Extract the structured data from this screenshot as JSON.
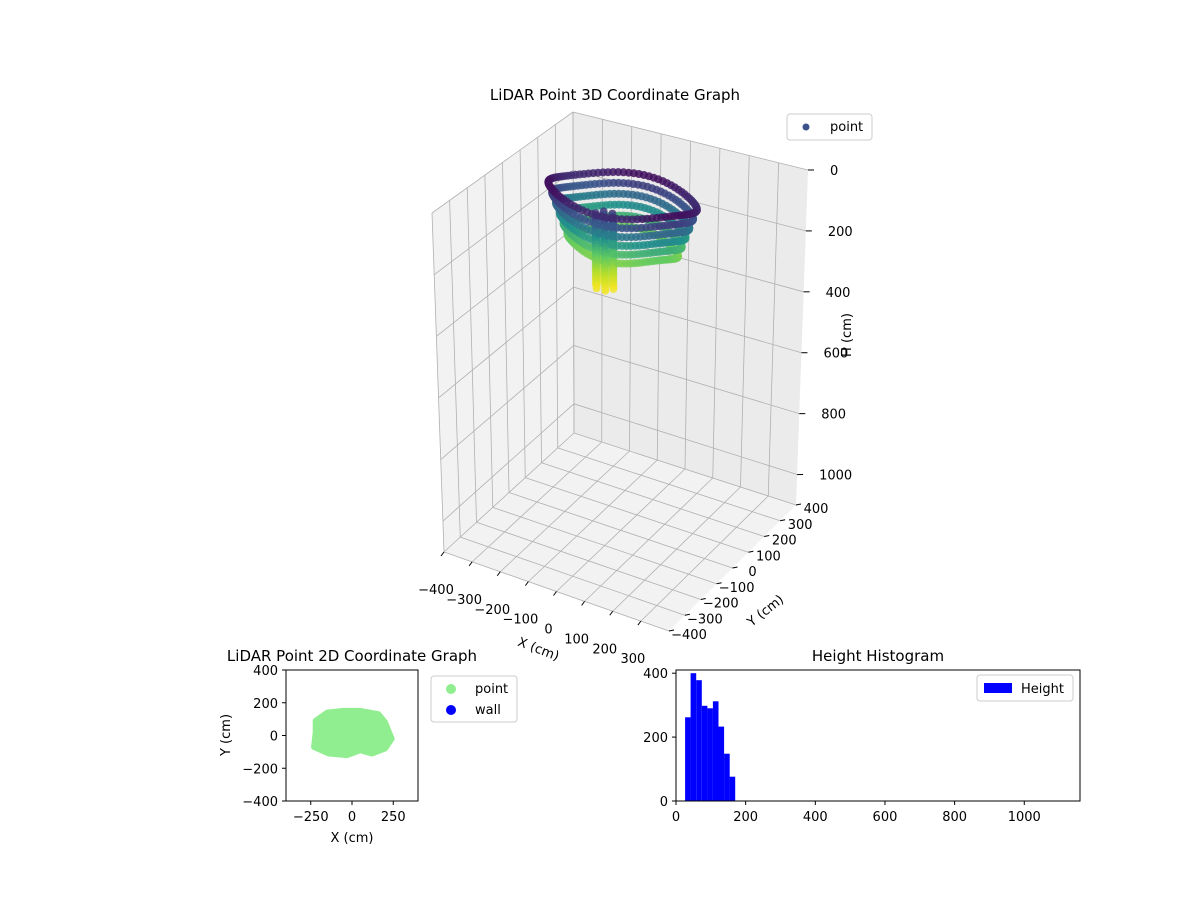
{
  "chart_data": [
    {
      "id": "lidar-3d",
      "type": "scatter",
      "title": "LiDAR Point 3D Coordinate Graph",
      "xlabel": "X (cm)",
      "ylabel": "Y (cm)",
      "zlabel": "H (cm)",
      "xlim": [
        -400,
        400
      ],
      "ylim": [
        -400,
        400
      ],
      "zlim": [
        1100,
        0
      ],
      "x_ticks": [
        -400,
        -300,
        -200,
        -100,
        0,
        100,
        200,
        300
      ],
      "y_ticks": [
        -400,
        -300,
        -200,
        -100,
        0,
        100,
        200,
        300,
        400
      ],
      "z_ticks": [
        0,
        200,
        400,
        600,
        800,
        1000
      ],
      "x_tick_labels": [
        "−400",
        "−300",
        "−200",
        "−100",
        "0",
        "100",
        "200",
        "300"
      ],
      "y_tick_labels": [
        "−400",
        "−300",
        "−200",
        "−100",
        "0",
        "100",
        "200",
        "300",
        "400"
      ],
      "z_tick_labels": [
        "0",
        "200",
        "400",
        "600",
        "800",
        "1000"
      ],
      "colormap": "viridis",
      "legend": {
        "placement": "top-right",
        "entries": [
          {
            "label": "point",
            "color": "#3b528b"
          }
        ]
      },
      "series": [
        {
          "name": "point",
          "shape": "ring",
          "x_range": [
            -240,
            240
          ],
          "y_range": [
            -120,
            150
          ],
          "h_range": [
            20,
            180
          ],
          "center_column": {
            "x": 0,
            "y": -90,
            "h_range": [
              40,
              270
            ]
          }
        }
      ]
    },
    {
      "id": "lidar-2d",
      "type": "scatter",
      "title": "LiDAR Point 2D Coordinate Graph",
      "xlabel": "X (cm)",
      "ylabel": "Y (cm)",
      "xlim": [
        -400,
        400
      ],
      "ylim": [
        -400,
        400
      ],
      "x_ticks": [
        -250,
        0,
        250
      ],
      "y_ticks": [
        -400,
        -200,
        0,
        200,
        400
      ],
      "x_tick_labels": [
        "−250",
        "0",
        "250"
      ],
      "y_tick_labels": [
        "−400",
        "−200",
        "0",
        "200",
        "400"
      ],
      "legend": {
        "placement": "outside-right",
        "entries": [
          {
            "label": "point",
            "color": "#90ee90"
          },
          {
            "label": "wall",
            "color": "#0000ff"
          }
        ]
      },
      "series": [
        {
          "name": "point",
          "color": "#90ee90",
          "region_outline": [
            [
              -220,
              90
            ],
            [
              -150,
              140
            ],
            [
              -50,
              150
            ],
            [
              50,
              150
            ],
            [
              160,
              130
            ],
            [
              200,
              80
            ],
            [
              240,
              -20
            ],
            [
              200,
              -80
            ],
            [
              120,
              -110
            ],
            [
              50,
              -90
            ],
            [
              -30,
              -120
            ],
            [
              -140,
              -110
            ],
            [
              -230,
              -70
            ],
            [
              -220,
              20
            ]
          ]
        },
        {
          "name": "wall",
          "color": "#0000ff",
          "points": []
        }
      ]
    },
    {
      "id": "height-hist",
      "type": "bar",
      "title": "Height Histogram",
      "xlim": [
        0,
        1160
      ],
      "ylim": [
        0,
        410
      ],
      "x_ticks": [
        0,
        200,
        400,
        600,
        800,
        1000
      ],
      "y_ticks": [
        0,
        200,
        400
      ],
      "legend": {
        "placement": "top-right",
        "entries": [
          {
            "label": "Height",
            "color": "#0000ff"
          }
        ]
      },
      "bin_width": 16,
      "series": [
        {
          "name": "Height",
          "color": "#0000ff",
          "bins": [
            {
              "x0": 26,
              "value": 262
            },
            {
              "x0": 42,
              "value": 400
            },
            {
              "x0": 58,
              "value": 378
            },
            {
              "x0": 74,
              "value": 298
            },
            {
              "x0": 90,
              "value": 290
            },
            {
              "x0": 106,
              "value": 312
            },
            {
              "x0": 122,
              "value": 233
            },
            {
              "x0": 138,
              "value": 148
            },
            {
              "x0": 154,
              "value": 76
            }
          ]
        }
      ]
    }
  ]
}
